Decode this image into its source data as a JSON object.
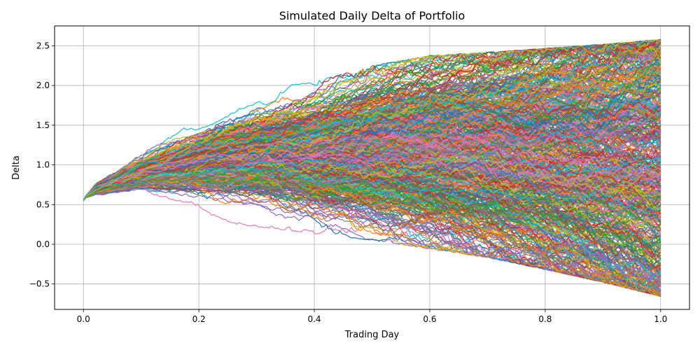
{
  "chart_data": {
    "type": "line",
    "title": "Simulated Daily Delta of Portfolio",
    "xlabel": "Trading Day",
    "ylabel": "Delta",
    "xlim": [
      -0.05,
      1.05
    ],
    "ylim": [
      -0.82,
      2.75
    ],
    "grid": true,
    "legend": "none",
    "x_ticks": [
      0.0,
      0.2,
      0.4,
      0.6,
      0.8,
      1.0
    ],
    "x_tick_labels": [
      "0.0",
      "0.2",
      "0.4",
      "0.6",
      "0.8",
      "1.0"
    ],
    "y_ticks": [
      -0.5,
      0.0,
      0.5,
      1.0,
      1.5,
      2.0,
      2.5
    ],
    "y_tick_labels": [
      "−0.5",
      "0.0",
      "0.5",
      "1.0",
      "1.5",
      "2.0",
      "2.5"
    ],
    "path_count": 600,
    "start_value": 0.55,
    "envelope": {
      "x": [
        0.0,
        0.02,
        0.1,
        0.2,
        0.3,
        0.4,
        0.5,
        0.6,
        0.7,
        0.8,
        0.9,
        1.0
      ],
      "upper": [
        0.6,
        0.95,
        1.4,
        1.72,
        1.95,
        2.05,
        2.25,
        2.38,
        2.42,
        2.47,
        2.52,
        2.58
      ],
      "lower": [
        0.55,
        0.42,
        0.37,
        0.29,
        0.22,
        0.13,
        0.05,
        -0.06,
        -0.17,
        -0.32,
        -0.48,
        -0.66
      ]
    },
    "colors": [
      "#1f77b4",
      "#ff7f0e",
      "#2ca02c",
      "#d62728",
      "#9467bd",
      "#8c564b",
      "#e377c2",
      "#7f7f7f",
      "#bcbd22",
      "#17becf"
    ]
  }
}
